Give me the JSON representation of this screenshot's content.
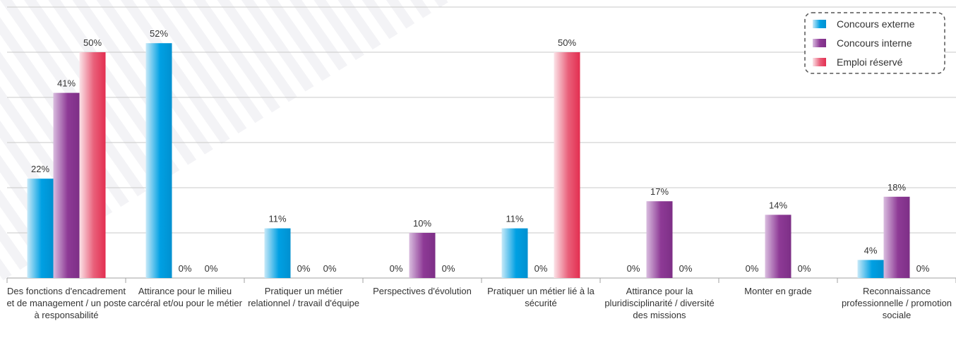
{
  "chart_data": {
    "type": "bar",
    "categories": [
      "Des fonctions d'encadrement et de management / un poste à responsabilité",
      "Attirance pour le milieu carcéral et/ou pour le métier",
      "Pratiquer un métier relationnel / travail d'équipe",
      "Perspectives d'évolution",
      "Pratiquer un métier lié à la sécurité",
      "Attirance pour la pluridisciplinarité / diversité des missions",
      "Monter en grade",
      "Reconnaissance professionnelle / promotion sociale"
    ],
    "series": [
      {
        "name": "Concours externe",
        "values": [
          22,
          52,
          11,
          0,
          11,
          0,
          0,
          4
        ],
        "labels": [
          "22%",
          "52%",
          "11%",
          "0%",
          "11%",
          "0%",
          "0%",
          "4%"
        ]
      },
      {
        "name": "Concours interne",
        "values": [
          41,
          0,
          0,
          10,
          0,
          17,
          14,
          18
        ],
        "labels": [
          "41%",
          "0%",
          "0%",
          "10%",
          "0%",
          "17%",
          "14%",
          "18%"
        ]
      },
      {
        "name": "Emploi réservé",
        "values": [
          50,
          0,
          0,
          0,
          50,
          0,
          0,
          0
        ],
        "labels": [
          "50%",
          "0%",
          "0%",
          "0%",
          "50%",
          "0%",
          "0%",
          "0%"
        ]
      }
    ],
    "colors": [
      "#00a0e3",
      "#8e3a96",
      "#e63657"
    ],
    "ylim": [
      0,
      60
    ],
    "grid": true,
    "legend": "top-right",
    "title": "",
    "xlabel": "",
    "ylabel": ""
  }
}
